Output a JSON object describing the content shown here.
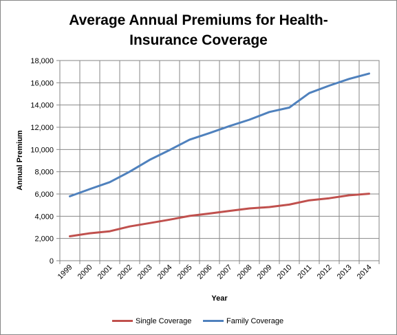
{
  "chart_data": {
    "type": "line",
    "title": "Average Annual Premiums for Health-\nInsurance Coverage",
    "xlabel": "Year",
    "ylabel": "Annual Premium",
    "categories": [
      "1999",
      "2000",
      "2001",
      "2002",
      "2003",
      "2004",
      "2005",
      "2006",
      "2007",
      "2008",
      "2009",
      "2010",
      "2011",
      "2012",
      "2013",
      "2014"
    ],
    "ylim": [
      0,
      18000
    ],
    "yticks": [
      0,
      2000,
      4000,
      6000,
      8000,
      10000,
      12000,
      14000,
      16000,
      18000
    ],
    "ytick_labels": [
      "0",
      "2,000",
      "4,000",
      "6,000",
      "8,000",
      "10,000",
      "12,000",
      "14,000",
      "16,000",
      "18,000"
    ],
    "grid": true,
    "legend_position": "bottom",
    "series": [
      {
        "name": "Single Coverage",
        "color": "#c0504d",
        "values": [
          2196,
          2471,
          2650,
          3083,
          3383,
          3695,
          4024,
          4242,
          4479,
          4704,
          4824,
          5049,
          5429,
          5615,
          5884,
          6025
        ]
      },
      {
        "name": "Family Coverage",
        "color": "#4f81bd",
        "values": [
          5791,
          6438,
          7061,
          8003,
          9068,
          9950,
          10880,
          11480,
          12106,
          12680,
          13375,
          13770,
          15073,
          15745,
          16351,
          16834
        ]
      }
    ]
  }
}
